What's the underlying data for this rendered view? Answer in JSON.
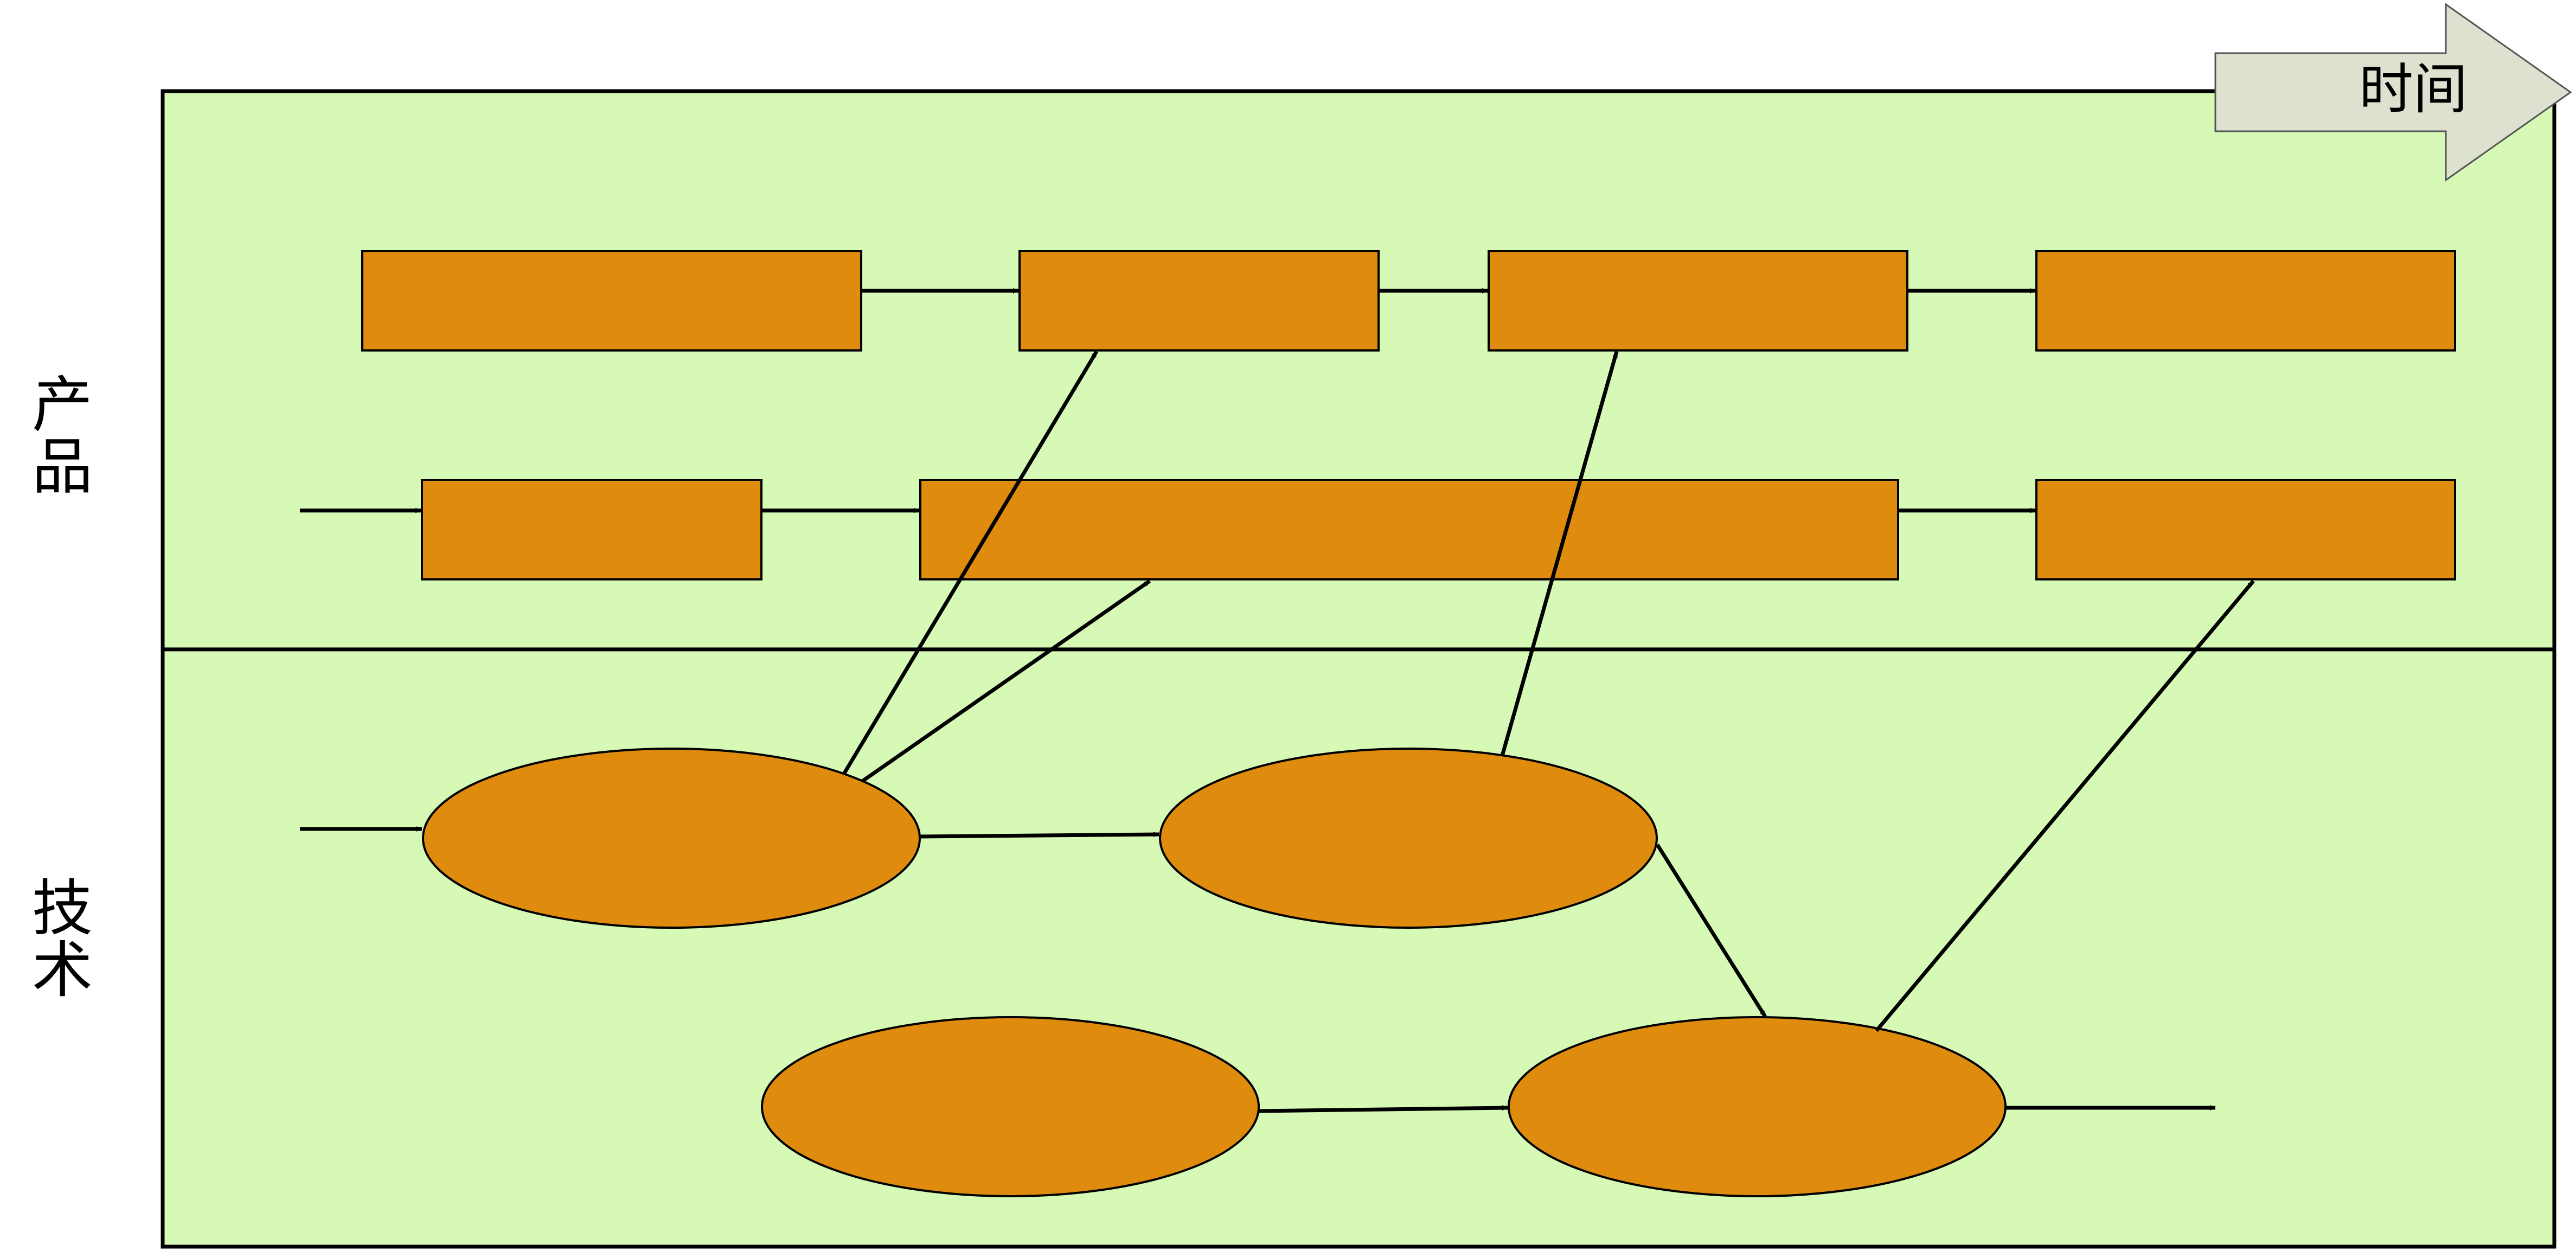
{
  "labels": {
    "time": "时间",
    "product_row": [
      "产",
      "品"
    ],
    "technology_row": [
      "技",
      "术"
    ]
  },
  "colors": {
    "panel_fill": "#d6f9b6",
    "node_fill": "#df8c0e",
    "stroke": "#000000",
    "time_arrow_fill": "#dde2d0"
  }
}
